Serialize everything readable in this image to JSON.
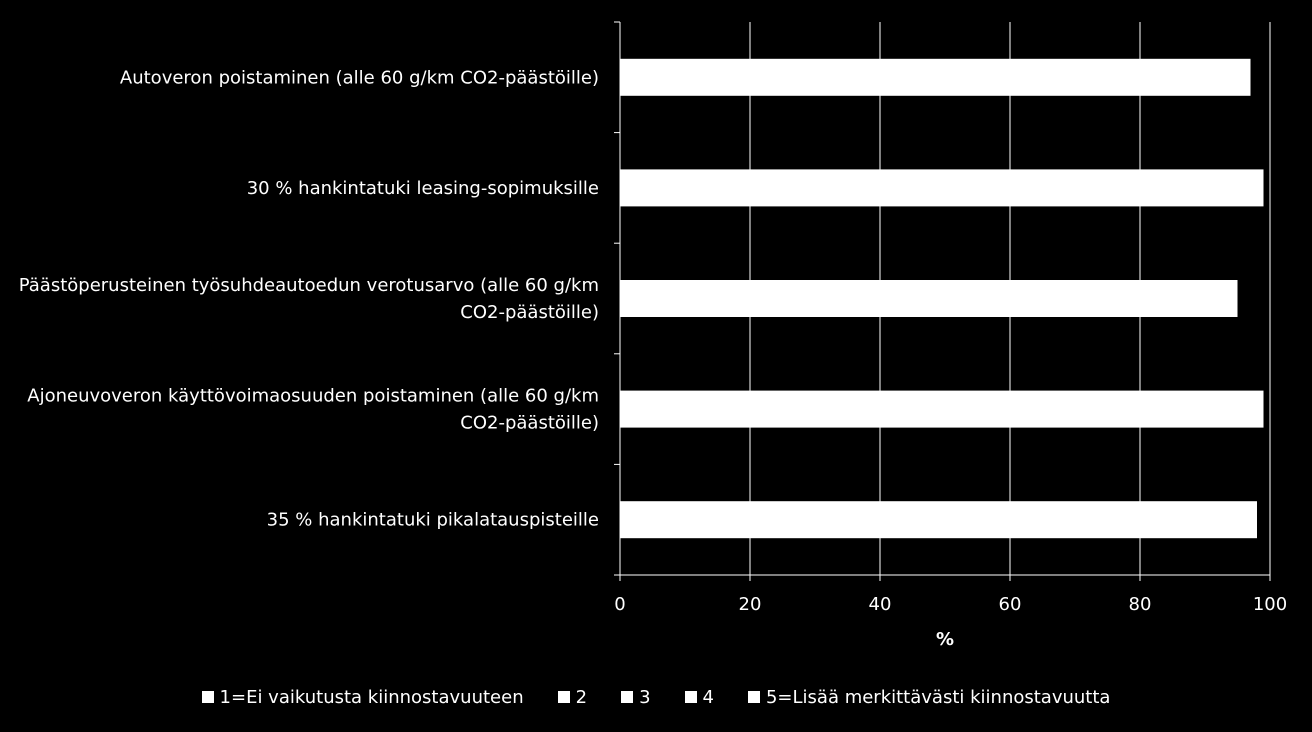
{
  "chart_data": {
    "type": "bar",
    "orientation": "horizontal",
    "stacked": true,
    "categories": [
      [
        "Autoveron poistaminen (alle 60 g/km CO2-päästöille)"
      ],
      [
        "30 % hankintatuki leasing-sopimuksille"
      ],
      [
        "Päästöperusteinen työsuhdeautoedun verotusarvo (alle 60 g/km",
        "CO2-päästöille)"
      ],
      [
        "Ajoneuvoveron käyttövoimaosuuden poistaminen (alle 60 g/km",
        "CO2-päästöille)"
      ],
      [
        "35 % hankintatuki pikalatauspisteille"
      ]
    ],
    "series": [
      {
        "name": "1=Ei vaikutusta kiinnostavuuteen",
        "values": [
          97,
          99,
          95,
          99,
          98
        ]
      },
      {
        "name": "2",
        "values": [
          0,
          0,
          0,
          0,
          0
        ]
      },
      {
        "name": "3",
        "values": [
          0,
          0,
          0,
          0,
          0
        ]
      },
      {
        "name": "4",
        "values": [
          0,
          0,
          0,
          0,
          0
        ]
      },
      {
        "name": "5=Lisää merkittävästi kiinnostavuutta",
        "values": [
          0,
          0,
          0,
          0,
          0
        ]
      }
    ],
    "xlabel": "%",
    "xlim": [
      0,
      100
    ],
    "xticks": [
      "0",
      "20",
      "40",
      "60",
      "80",
      "100"
    ],
    "grid": true,
    "legend_position": "bottom",
    "colors": {
      "background": "#000000",
      "bar": "#ffffff",
      "axis": "#ffffff",
      "grid": "#ffffff"
    }
  }
}
